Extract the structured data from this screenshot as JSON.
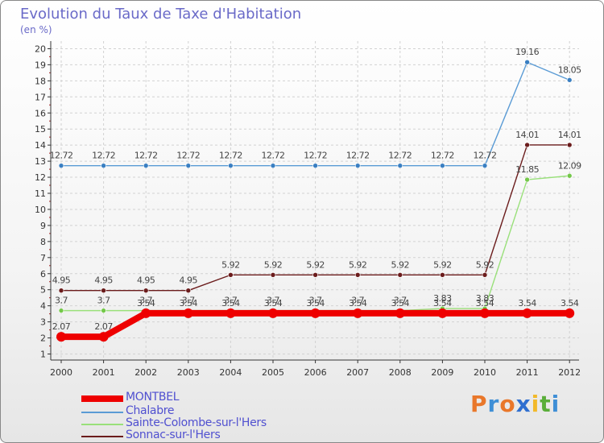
{
  "title": "Evolution du Taux de Taxe d'Habitation",
  "unit": "(en %)",
  "logo": [
    "P",
    "r",
    "o",
    "x",
    "i",
    "t",
    "i"
  ],
  "logo_colors": [
    "#e9772a",
    "#3f8fd6",
    "#e9772a",
    "#2f6fd0",
    "#f2b92a",
    "#5aae3a",
    "#3f8fd6"
  ],
  "chart_data": {
    "type": "line",
    "title": "Evolution du Taux de Taxe d'Habitation",
    "ylabel": "(en %)",
    "xlabel": "",
    "ylim": [
      1,
      20
    ],
    "yticks": [
      "1",
      "2",
      "3",
      "4",
      "5",
      "6",
      "7",
      "8",
      "9",
      "10",
      "11",
      "12",
      "13",
      "14",
      "15",
      "16",
      "17",
      "18",
      "19",
      "20"
    ],
    "categories": [
      "2000",
      "2001",
      "2002",
      "2003",
      "2004",
      "2005",
      "2006",
      "2007",
      "2008",
      "2009",
      "2010",
      "2011",
      "2012"
    ],
    "series": [
      {
        "name": "Sonnac-sur-l'Hers",
        "color": "#6b1c1c",
        "marker": "#6b1c1c",
        "values": [
          4.95,
          4.95,
          4.95,
          4.95,
          5.92,
          5.92,
          5.92,
          5.92,
          5.92,
          5.92,
          5.92,
          14.01,
          14.01
        ],
        "labels": [
          "4.95",
          "4.95",
          "4.95",
          "4.95",
          "5.92",
          "5.92",
          "5.92",
          "5.92",
          "5.92",
          "5.92",
          "5.92",
          "14.01",
          "14.01"
        ]
      },
      {
        "name": "Chalabre",
        "color": "#5a9bd5",
        "marker": "#3a7fc2",
        "values": [
          12.72,
          12.72,
          12.72,
          12.72,
          12.72,
          12.72,
          12.72,
          12.72,
          12.72,
          12.72,
          12.72,
          19.16,
          18.05
        ],
        "labels": [
          "12.72",
          "12.72",
          "12.72",
          "12.72",
          "12.72",
          "12.72",
          "12.72",
          "12.72",
          "12.72",
          "12.72",
          "12.72",
          "19.16",
          "18.05"
        ]
      },
      {
        "name": "Sainte-Colombe-sur-l'Hers",
        "color": "#99e07a",
        "marker": "#74c84a",
        "values": [
          3.7,
          3.7,
          3.7,
          3.7,
          3.7,
          3.7,
          3.7,
          3.7,
          3.7,
          3.83,
          3.83,
          11.85,
          12.09
        ],
        "labels": [
          "3.7",
          "3.7",
          "3.7",
          "3.7",
          "3.7",
          "3.7",
          "3.7",
          "3.7",
          "3.7",
          "3.83",
          "3.83",
          "11.85",
          "12.09"
        ]
      },
      {
        "name": "MONTBEL",
        "color": "#ee0000",
        "marker": "#ee0000",
        "values": [
          2.07,
          2.07,
          3.54,
          3.54,
          3.54,
          3.54,
          3.54,
          3.54,
          3.54,
          3.54,
          3.54,
          3.54,
          3.54
        ],
        "labels": [
          "2.07",
          "2.07",
          "3.54",
          "3.54",
          "3.54",
          "3.54",
          "3.54",
          "3.54",
          "3.54",
          "3.54",
          "3.54",
          "3.54",
          "3.54"
        ]
      }
    ],
    "legend": {
      "position": "bottom-left",
      "items": [
        "MONTBEL",
        "Chalabre",
        "Sainte-Colombe-sur-l'Hers",
        "Sonnac-sur-l'Hers"
      ]
    }
  }
}
